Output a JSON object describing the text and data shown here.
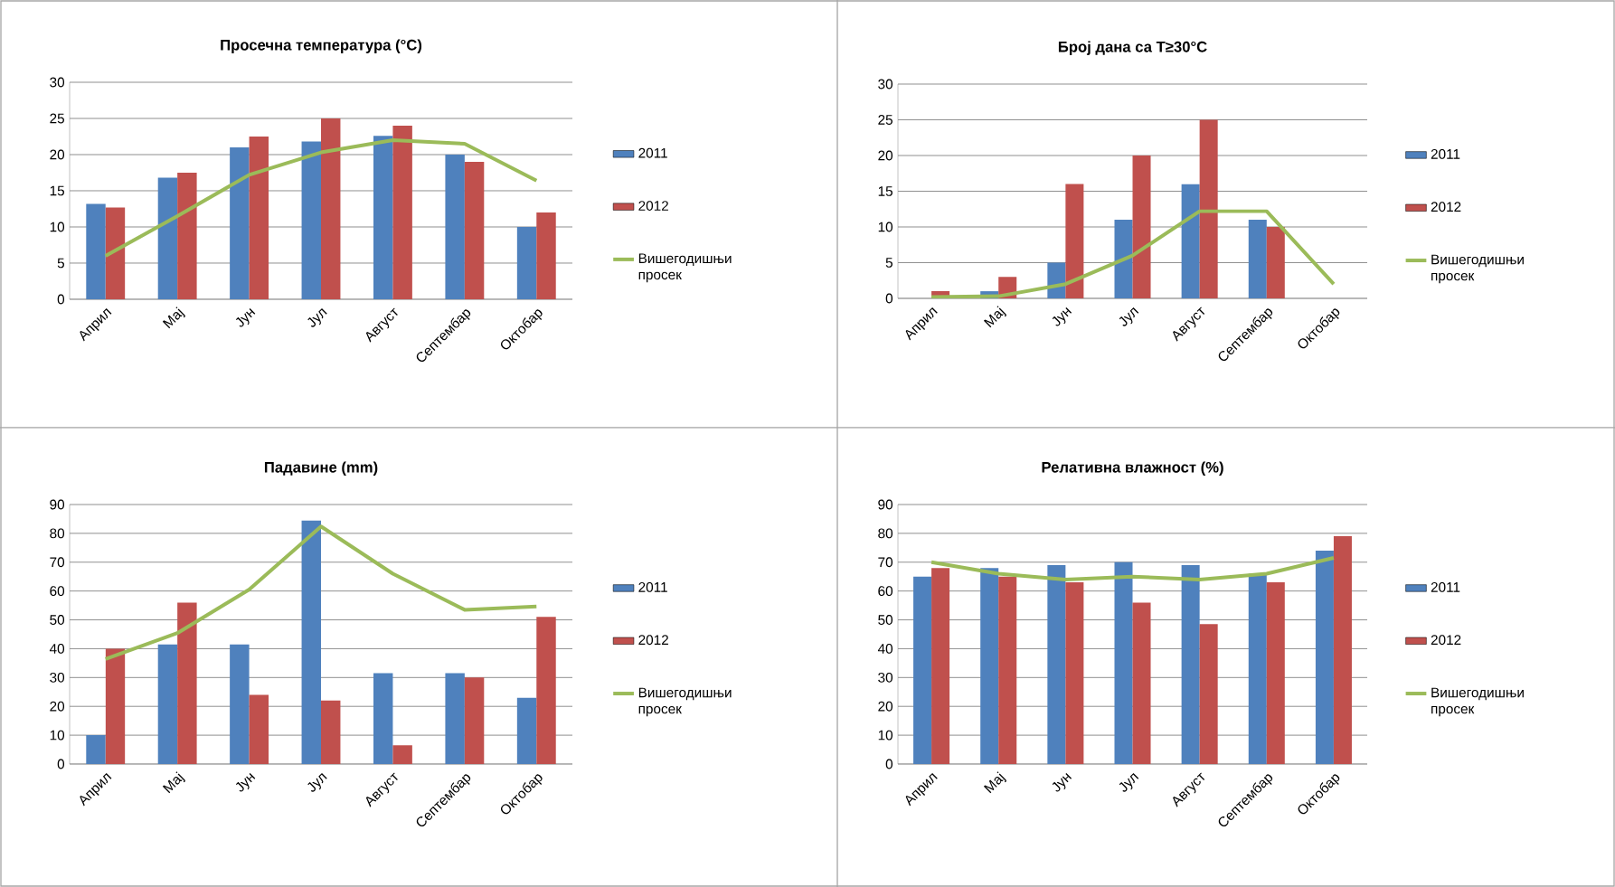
{
  "chart_data": [
    {
      "type": "bar",
      "title": "Просечна температура (°C)",
      "categories": [
        "Април",
        "Мај",
        "Јун",
        "Јул",
        "Август",
        "Септембар",
        "Октобар"
      ],
      "series": [
        {
          "name": "2011",
          "color": "#4f81bd",
          "values": [
            13.2,
            16.8,
            21,
            21.8,
            22.6,
            20,
            10
          ]
        },
        {
          "name": "2012",
          "color": "#c0504d",
          "values": [
            12.7,
            17.5,
            22.5,
            25,
            24,
            19,
            12
          ]
        },
        {
          "name": "Вишегодишњи просек",
          "type": "line",
          "color": "#9bbb59",
          "values": [
            6,
            11.5,
            17.2,
            20.3,
            22,
            21.5,
            16.4
          ]
        }
      ],
      "ylim": [
        0,
        30
      ],
      "yticks": [
        0,
        5,
        10,
        15,
        20,
        25,
        30
      ],
      "grid": "y",
      "legend": "right"
    },
    {
      "type": "bar",
      "title": "Број дана са T≥30°C",
      "categories": [
        "Април",
        "Мај",
        "Јун",
        "Јул",
        "Август",
        "Септембар",
        "Октобар"
      ],
      "series": [
        {
          "name": "2011",
          "color": "#4f81bd",
          "values": [
            0,
            1,
            5,
            11,
            16,
            11,
            0
          ]
        },
        {
          "name": "2012",
          "color": "#c0504d",
          "values": [
            1,
            3,
            16,
            20,
            25,
            10,
            0
          ]
        },
        {
          "name": "Вишегодишњи просек",
          "type": "line",
          "color": "#9bbb59",
          "values": [
            0.2,
            0.3,
            2,
            6,
            12.2,
            12.2,
            2
          ]
        }
      ],
      "ylim": [
        0,
        30
      ],
      "yticks": [
        0,
        5,
        10,
        15,
        20,
        25,
        30
      ],
      "grid": "y",
      "legend": "right"
    },
    {
      "type": "bar",
      "title": "Падавине (mm)",
      "categories": [
        "Април",
        "Мај",
        "Јун",
        "Јул",
        "Август",
        "Септембар",
        "Октобар"
      ],
      "series": [
        {
          "name": "2011",
          "color": "#4f81bd",
          "values": [
            10,
            41.5,
            41.5,
            84.5,
            31.5,
            31.5,
            23
          ]
        },
        {
          "name": "2012",
          "color": "#c0504d",
          "values": [
            40,
            56,
            24,
            22,
            6.5,
            30,
            51
          ]
        },
        {
          "name": "Вишегодишњи просек",
          "type": "line",
          "color": "#9bbb59",
          "values": [
            36.4,
            45.4,
            60.5,
            82.4,
            66,
            53.5,
            54.6
          ]
        }
      ],
      "ylim": [
        0,
        90
      ],
      "yticks": [
        0,
        10,
        20,
        30,
        40,
        50,
        60,
        70,
        80,
        90
      ],
      "grid": "y",
      "legend": "right"
    },
    {
      "type": "bar",
      "title": "Релативна влажност (%)",
      "categories": [
        "Април",
        "Мај",
        "Јун",
        "Јул",
        "Август",
        "Септембар",
        "Октобар"
      ],
      "series": [
        {
          "name": "2011",
          "color": "#4f81bd",
          "values": [
            65,
            68,
            69,
            70,
            69,
            66,
            74
          ]
        },
        {
          "name": "2012",
          "color": "#c0504d",
          "values": [
            68,
            65,
            63,
            56,
            48.5,
            63,
            79
          ]
        },
        {
          "name": "Вишегодишњи просек",
          "type": "line",
          "color": "#9bbb59",
          "values": [
            70,
            66,
            64,
            65,
            64,
            66,
            71.5
          ]
        }
      ],
      "ylim": [
        0,
        90
      ],
      "yticks": [
        0,
        10,
        20,
        30,
        40,
        50,
        60,
        70,
        80,
        90
      ],
      "grid": "y",
      "legend": "right"
    }
  ]
}
